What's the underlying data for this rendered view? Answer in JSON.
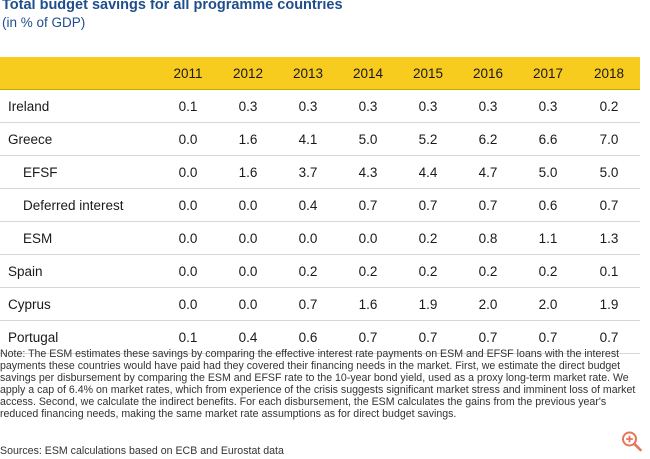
{
  "title": "Total budget savings for all programme countries",
  "subtitle": "(in % of GDP)",
  "table": {
    "years": [
      "2011",
      "2012",
      "2013",
      "2014",
      "2015",
      "2016",
      "2017",
      "2018"
    ],
    "rows": [
      {
        "label": "Ireland",
        "indent": false,
        "values": [
          "0.1",
          "0.3",
          "0.3",
          "0.3",
          "0.3",
          "0.3",
          "0.3",
          "0.2"
        ]
      },
      {
        "label": "Greece",
        "indent": false,
        "values": [
          "0.0",
          "1.6",
          "4.1",
          "5.0",
          "5.2",
          "6.2",
          "6.6",
          "7.0"
        ]
      },
      {
        "label": "EFSF",
        "indent": true,
        "values": [
          "0.0",
          "1.6",
          "3.7",
          "4.3",
          "4.4",
          "4.7",
          "5.0",
          "5.0"
        ]
      },
      {
        "label": "Deferred interest",
        "indent": true,
        "values": [
          "0.0",
          "0.0",
          "0.4",
          "0.7",
          "0.7",
          "0.7",
          "0.6",
          "0.7"
        ]
      },
      {
        "label": "ESM",
        "indent": true,
        "values": [
          "0.0",
          "0.0",
          "0.0",
          "0.0",
          "0.2",
          "0.8",
          "1.1",
          "1.3"
        ]
      },
      {
        "label": "Spain",
        "indent": false,
        "values": [
          "0.0",
          "0.0",
          "0.2",
          "0.2",
          "0.2",
          "0.2",
          "0.2",
          "0.1"
        ]
      },
      {
        "label": "Cyprus",
        "indent": false,
        "values": [
          "0.0",
          "0.0",
          "0.7",
          "1.6",
          "1.9",
          "2.0",
          "2.0",
          "1.9"
        ]
      },
      {
        "label": "Portugal",
        "indent": false,
        "values": [
          "0.1",
          "0.4",
          "0.6",
          "0.7",
          "0.7",
          "0.7",
          "0.7",
          "0.7"
        ]
      }
    ]
  },
  "note": "Note: The ESM estimates these savings by comparing the effective interest rate payments on ESM and EFSF loans with the interest payments these countries would have paid had they covered their financing needs in the market. First, we estimate the direct budget savings per disbursement by comparing the ESM and EFSF rate to the 10-year bond yield, used as a proxy long-term market rate. We apply a cap of 6.4% on market rates, which from experience of the crisis suggests significant market stress and imminent loss of market access. Second, we calculate the indirect benefits. For each disbursement, the ESM calculates the gains from the previous year's reduced financing needs, making the same market rate assumptions as for direct budget savings.",
  "source": "Sources: ESM calculations based on ECB and Eurostat data",
  "colors": {
    "header_bg": "#f7cc1f",
    "title": "#1f4e8c",
    "zoom_icon": "#e8745a"
  },
  "icons": {
    "zoom": "zoom-in-icon"
  }
}
